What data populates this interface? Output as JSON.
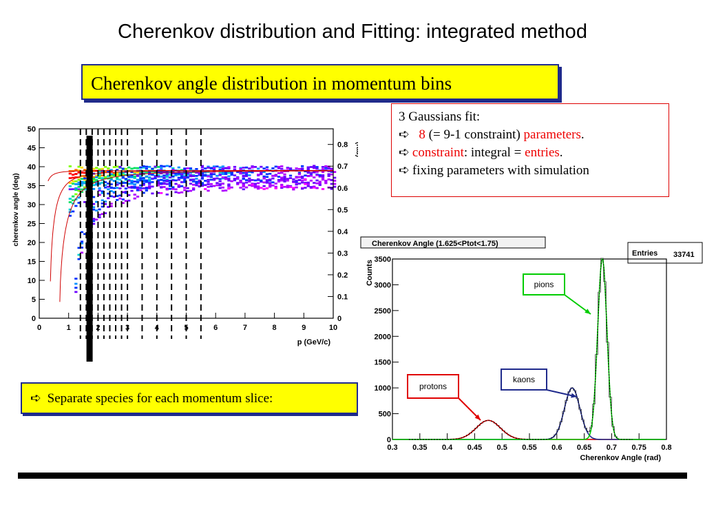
{
  "slide": {
    "title": "Cherenkov distribution and Fitting: integrated method",
    "subtitle": "Cherenkov angle distribution in momentum bins",
    "fit_box": {
      "line1": "3 Gaussians fit:",
      "line2_num": "8",
      "line2_mid": " (= 9-1 constraint) ",
      "line2_red": "parameters",
      "line2_end": ".",
      "line3_red1": "constraint",
      "line3_mid": ": integral = ",
      "line3_red2": "entries",
      "line3_end": ".",
      "line4": "fixing parameters with simulation"
    },
    "slice_text": "Separate species for each momentum slice:",
    "arrow_glyph": "➪",
    "colors": {
      "yellow": "#ffff00",
      "navy": "#1f2a8c",
      "red": "#e00000"
    }
  },
  "chart_data": [
    {
      "type": "heatmap",
      "xlabel": "p (GeV/c)",
      "ylabel": "cherenkov angle (deg)",
      "y2label": "(rad)",
      "xlim": [
        0,
        10
      ],
      "ylim": [
        0,
        50
      ],
      "y2lim": [
        0,
        0.872
      ],
      "x_ticks": [
        "0",
        "1",
        "2",
        "3",
        "4",
        "5",
        "6",
        "7",
        "8",
        "9",
        "10"
      ],
      "y_ticks": [
        "0",
        "5",
        "10",
        "15",
        "20",
        "25",
        "30",
        "35",
        "40",
        "45",
        "50"
      ],
      "y2_ticks": [
        "0",
        "0.1",
        "0.2",
        "0.3",
        "0.4",
        "0.5",
        "0.6",
        "0.7",
        "0.8"
      ],
      "momentum_bin_edges": [
        1.4,
        1.6,
        1.8,
        2.0,
        2.2,
        2.4,
        2.6,
        2.8,
        3.0,
        3.5,
        4.0,
        4.5,
        5.0,
        5.5
      ],
      "highlighted_bin": 1.7,
      "curves": [
        {
          "label": "pion band",
          "mass": 0.14,
          "color": "#d00000"
        },
        {
          "label": "kaon band",
          "mass": 0.494,
          "color": "#d00000"
        },
        {
          "label": "proton band",
          "mass": 0.938,
          "color": "#d00000"
        }
      ]
    },
    {
      "type": "line",
      "title": "Cherenkov  Angle  (1.625<Ptot<1.75)",
      "stats_label": "Entries",
      "stats_value": "33741",
      "xlabel": "Cherenkov  Angle  (rad)",
      "ylabel": "Counts",
      "xlim": [
        0.3,
        0.8
      ],
      "ylim": [
        0,
        3500
      ],
      "x_ticks": [
        "0.3",
        "0.35",
        "0.4",
        "0.45",
        "0.5",
        "0.55",
        "0.6",
        "0.65",
        "0.7",
        "0.75",
        "0.8"
      ],
      "y_ticks": [
        "0",
        "500",
        "1000",
        "1500",
        "2000",
        "2500",
        "3000",
        "3500"
      ],
      "series": [
        {
          "name": "protons",
          "mean": 0.475,
          "sigma": 0.022,
          "amp": 370,
          "color": "#e00000"
        },
        {
          "name": "kaons",
          "mean": 0.628,
          "sigma": 0.014,
          "amp": 1000,
          "color": "#1f2a8c"
        },
        {
          "name": "pions",
          "mean": 0.683,
          "sigma": 0.0085,
          "amp": 3520,
          "color": "#00cc00"
        }
      ]
    }
  ]
}
